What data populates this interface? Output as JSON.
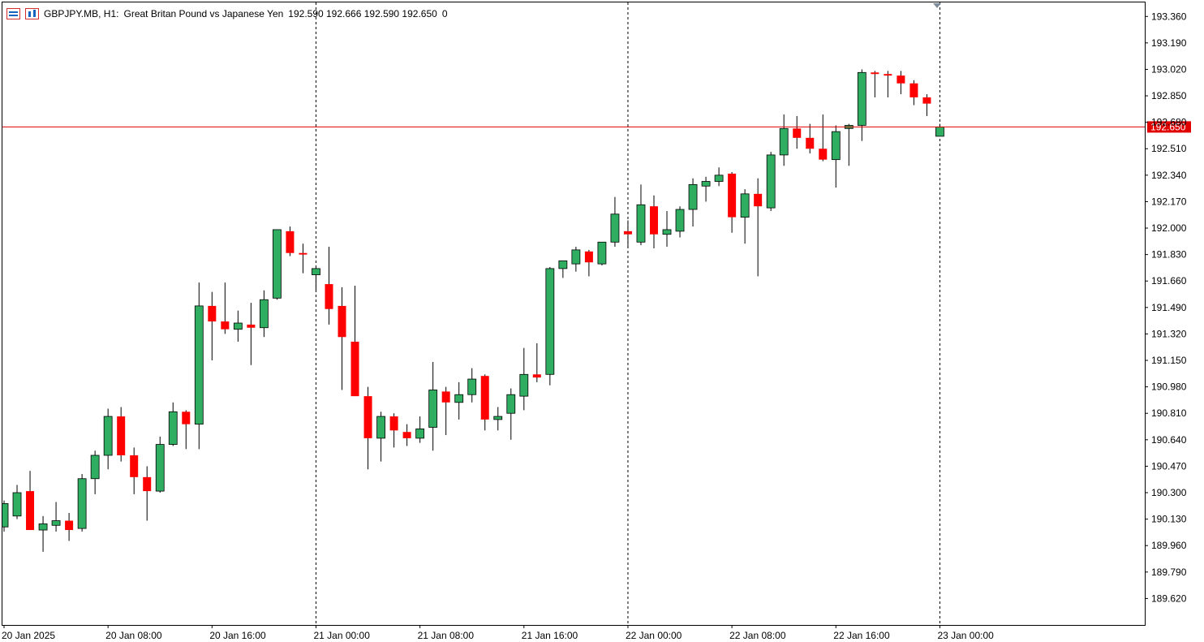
{
  "header": {
    "menu_icon": "quick-menu-icon",
    "chart_icon": "chart-type-icon",
    "symbol": "GBPJPY.MB, H1:",
    "description": "Great Britan Pound vs Japanese Yen",
    "ohlc": "192.590 192.666 192.590 192.650",
    "volume": "0"
  },
  "colors": {
    "bull": "#2fae62",
    "bear": "#ff0000",
    "price_line": "#e00000",
    "price_label_bg": "#e00000",
    "grid": "#000000"
  },
  "chart_data": {
    "type": "candlestick",
    "symbol": "GBPJPY.MB",
    "timeframe": "H1",
    "ylim": [
      189.45,
      193.45
    ],
    "yticks": [
      "193.360",
      "193.190",
      "193.020",
      "192.850",
      "192.680",
      "192.510",
      "192.340",
      "192.170",
      "192.000",
      "191.830",
      "191.660",
      "191.490",
      "191.320",
      "191.150",
      "190.980",
      "190.810",
      "190.640",
      "190.470",
      "190.300",
      "190.130",
      "189.960",
      "189.790",
      "189.620"
    ],
    "xticks": [
      {
        "index": 0,
        "label": "20 Jan 2025"
      },
      {
        "index": 8,
        "label": "20 Jan 08:00"
      },
      {
        "index": 16,
        "label": "20 Jan 16:00"
      },
      {
        "index": 24,
        "label": "21 Jan 00:00"
      },
      {
        "index": 32,
        "label": "21 Jan 08:00"
      },
      {
        "index": 40,
        "label": "21 Jan 16:00"
      },
      {
        "index": 48,
        "label": "22 Jan 00:00"
      },
      {
        "index": 56,
        "label": "22 Jan 08:00"
      },
      {
        "index": 64,
        "label": "22 Jan 16:00"
      },
      {
        "index": 72,
        "label": "23 Jan 00:00"
      }
    ],
    "day_separators": [
      24,
      48,
      72
    ],
    "current_price": "192.650",
    "candles": [
      {
        "o": 190.08,
        "h": 190.25,
        "l": 190.05,
        "c": 190.23
      },
      {
        "o": 190.15,
        "h": 190.35,
        "l": 190.13,
        "c": 190.3
      },
      {
        "o": 190.31,
        "h": 190.44,
        "l": 190.06,
        "c": 190.06
      },
      {
        "o": 190.06,
        "h": 190.15,
        "l": 189.92,
        "c": 190.1
      },
      {
        "o": 190.09,
        "h": 190.24,
        "l": 190.05,
        "c": 190.12
      },
      {
        "o": 190.12,
        "h": 190.17,
        "l": 189.99,
        "c": 190.06
      },
      {
        "o": 190.07,
        "h": 190.42,
        "l": 190.05,
        "c": 190.39
      },
      {
        "o": 190.39,
        "h": 190.57,
        "l": 190.29,
        "c": 190.54
      },
      {
        "o": 190.54,
        "h": 190.84,
        "l": 190.45,
        "c": 190.79
      },
      {
        "o": 190.79,
        "h": 190.85,
        "l": 190.5,
        "c": 190.54
      },
      {
        "o": 190.54,
        "h": 190.59,
        "l": 190.29,
        "c": 190.4
      },
      {
        "o": 190.4,
        "h": 190.47,
        "l": 190.12,
        "c": 190.31
      },
      {
        "o": 190.31,
        "h": 190.66,
        "l": 190.3,
        "c": 190.61
      },
      {
        "o": 190.61,
        "h": 190.88,
        "l": 190.6,
        "c": 190.82
      },
      {
        "o": 190.82,
        "h": 190.83,
        "l": 190.58,
        "c": 190.74
      },
      {
        "o": 190.74,
        "h": 191.65,
        "l": 190.58,
        "c": 191.5
      },
      {
        "o": 191.5,
        "h": 191.59,
        "l": 191.15,
        "c": 191.4
      },
      {
        "o": 191.4,
        "h": 191.65,
        "l": 191.32,
        "c": 191.35
      },
      {
        "o": 191.35,
        "h": 191.47,
        "l": 191.27,
        "c": 191.39
      },
      {
        "o": 191.38,
        "h": 191.52,
        "l": 191.12,
        "c": 191.36
      },
      {
        "o": 191.36,
        "h": 191.6,
        "l": 191.3,
        "c": 191.54
      },
      {
        "o": 191.55,
        "h": 191.99,
        "l": 191.54,
        "c": 191.99
      },
      {
        "o": 191.98,
        "h": 192.01,
        "l": 191.82,
        "c": 191.84
      },
      {
        "o": 191.84,
        "h": 191.9,
        "l": 191.71,
        "c": 191.83
      },
      {
        "o": 191.7,
        "h": 191.76,
        "l": 191.6,
        "c": 191.74
      },
      {
        "o": 191.64,
        "h": 191.88,
        "l": 191.38,
        "c": 191.48
      },
      {
        "o": 191.5,
        "h": 191.62,
        "l": 190.96,
        "c": 191.3
      },
      {
        "o": 191.27,
        "h": 191.63,
        "l": 190.95,
        "c": 190.92
      },
      {
        "o": 190.92,
        "h": 190.98,
        "l": 190.45,
        "c": 190.65
      },
      {
        "o": 190.65,
        "h": 190.82,
        "l": 190.5,
        "c": 190.79
      },
      {
        "o": 190.79,
        "h": 190.81,
        "l": 190.59,
        "c": 190.7
      },
      {
        "o": 190.69,
        "h": 190.74,
        "l": 190.6,
        "c": 190.65
      },
      {
        "o": 190.65,
        "h": 190.79,
        "l": 190.62,
        "c": 190.71
      },
      {
        "o": 190.72,
        "h": 191.14,
        "l": 190.57,
        "c": 190.96
      },
      {
        "o": 190.95,
        "h": 190.98,
        "l": 190.67,
        "c": 190.88
      },
      {
        "o": 190.88,
        "h": 191.01,
        "l": 190.77,
        "c": 190.93
      },
      {
        "o": 190.93,
        "h": 191.1,
        "l": 190.88,
        "c": 191.03
      },
      {
        "o": 191.05,
        "h": 191.06,
        "l": 190.7,
        "c": 190.77
      },
      {
        "o": 190.77,
        "h": 190.85,
        "l": 190.7,
        "c": 190.79
      },
      {
        "o": 190.81,
        "h": 190.97,
        "l": 190.64,
        "c": 190.93
      },
      {
        "o": 190.92,
        "h": 191.23,
        "l": 190.83,
        "c": 191.06
      },
      {
        "o": 191.06,
        "h": 191.26,
        "l": 191.01,
        "c": 191.04
      },
      {
        "o": 191.06,
        "h": 191.75,
        "l": 190.99,
        "c": 191.74
      },
      {
        "o": 191.74,
        "h": 191.79,
        "l": 191.68,
        "c": 191.79
      },
      {
        "o": 191.77,
        "h": 191.88,
        "l": 191.72,
        "c": 191.86
      },
      {
        "o": 191.85,
        "h": 191.86,
        "l": 191.69,
        "c": 191.78
      },
      {
        "o": 191.77,
        "h": 191.91,
        "l": 191.76,
        "c": 191.91
      },
      {
        "o": 191.91,
        "h": 192.2,
        "l": 191.88,
        "c": 192.09
      },
      {
        "o": 191.98,
        "h": 192.05,
        "l": 191.87,
        "c": 191.96
      },
      {
        "o": 191.91,
        "h": 192.28,
        "l": 191.89,
        "c": 192.15
      },
      {
        "o": 192.14,
        "h": 192.21,
        "l": 191.87,
        "c": 191.96
      },
      {
        "o": 191.96,
        "h": 192.11,
        "l": 191.88,
        "c": 191.99
      },
      {
        "o": 191.98,
        "h": 192.14,
        "l": 191.94,
        "c": 192.12
      },
      {
        "o": 192.12,
        "h": 192.32,
        "l": 192.01,
        "c": 192.28
      },
      {
        "o": 192.27,
        "h": 192.33,
        "l": 192.17,
        "c": 192.3
      },
      {
        "o": 192.3,
        "h": 192.39,
        "l": 192.27,
        "c": 192.34
      },
      {
        "o": 192.35,
        "h": 192.36,
        "l": 191.97,
        "c": 192.07
      },
      {
        "o": 192.07,
        "h": 192.25,
        "l": 191.9,
        "c": 192.22
      },
      {
        "o": 192.22,
        "h": 192.32,
        "l": 191.69,
        "c": 192.14
      },
      {
        "o": 192.13,
        "h": 192.49,
        "l": 192.11,
        "c": 192.47
      },
      {
        "o": 192.47,
        "h": 192.73,
        "l": 192.4,
        "c": 192.64
      },
      {
        "o": 192.64,
        "h": 192.72,
        "l": 192.51,
        "c": 192.58
      },
      {
        "o": 192.58,
        "h": 192.67,
        "l": 192.48,
        "c": 192.51
      },
      {
        "o": 192.51,
        "h": 192.73,
        "l": 192.43,
        "c": 192.44
      },
      {
        "o": 192.44,
        "h": 192.66,
        "l": 192.26,
        "c": 192.62
      },
      {
        "o": 192.64,
        "h": 192.67,
        "l": 192.4,
        "c": 192.66
      },
      {
        "o": 192.66,
        "h": 193.02,
        "l": 192.56,
        "c": 193.0
      },
      {
        "o": 193.0,
        "h": 193.01,
        "l": 192.84,
        "c": 192.99
      },
      {
        "o": 192.99,
        "h": 193.01,
        "l": 192.84,
        "c": 192.98
      },
      {
        "o": 192.98,
        "h": 193.01,
        "l": 192.86,
        "c": 192.93
      },
      {
        "o": 192.93,
        "h": 192.95,
        "l": 192.79,
        "c": 192.84
      },
      {
        "o": 192.84,
        "h": 192.86,
        "l": 192.72,
        "c": 192.8
      },
      {
        "o": 192.59,
        "h": 192.67,
        "l": 192.59,
        "c": 192.65
      }
    ]
  }
}
